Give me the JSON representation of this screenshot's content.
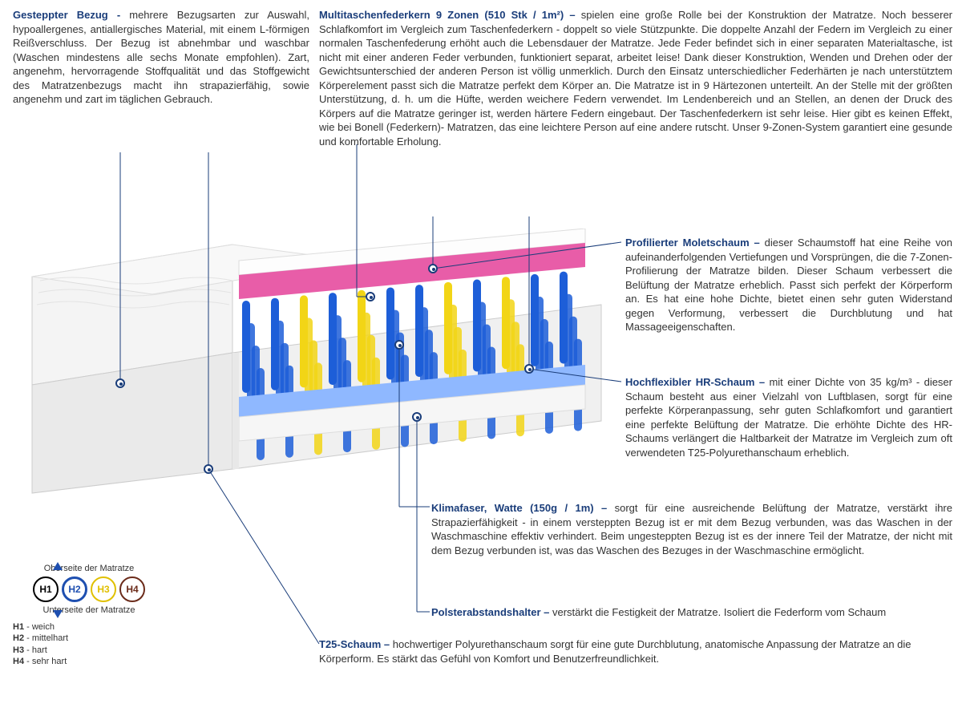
{
  "colors": {
    "title": "#1a3d7a",
    "body": "#333333",
    "h1_ring": "#000000",
    "h2_ring": "#1e4fb0",
    "h3_ring": "#e0c000",
    "h4_ring": "#6b2b1a",
    "foam_pink": "#e85da8",
    "foam_blue_light": "#8fb8ff",
    "spring_blue": "#1d5ed8",
    "spring_yellow": "#f2d516",
    "cover": "#f4f4f4",
    "cover_shadow": "#dcdcdc",
    "base": "#eeeeee"
  },
  "sections": {
    "cover": {
      "title": "Gesteppter Bezug - ",
      "body": "mehrere Bezugsarten zur Auswahl, hypoallergenes, antiallergisches Material, mit einem L-förmigen Reißverschluss. Der Bezug ist abnehmbar und waschbar (Waschen mindestens alle sechs Monate empfohlen). Zart, angenehm, hervorragende Stoffqualität und das Stoffgewicht des Matratzenbezugs macht ihn strapazierfähig, sowie angenehm und zart im täglichen Gebrauch."
    },
    "springs": {
      "title": "Multitaschenfederkern 9 Zonen (510 Stk / 1m²) – ",
      "body": "spielen eine große Rolle bei der Konstruktion der Matratze. Noch besserer Schlafkomfort im Vergleich zum Taschenfederkern - doppelt so viele Stützpunkte. Die doppelte Anzahl der Federn im Vergleich zu einer normalen Taschenfederung erhöht auch die Lebensdauer der Matratze. Jede Feder befindet sich in einer separaten Materialtasche, ist nicht mit einer anderen Feder verbunden, funktioniert separat, arbeitet leise! Dank dieser Konstruktion, Wenden und Drehen oder der Gewichtsunterschied der anderen Person ist völlig unmerklich. Durch den Einsatz unterschiedlicher Federhärten je nach unterstütztem Körperelement passt sich die Matratze perfekt dem Körper an. Die Matratze ist in 9 Härtezonen unterteilt. An der Stelle mit der größten Unterstützung, d. h. um die Hüfte, werden weichere Federn verwendet. Im Lendenbereich und an Stellen, an denen der Druck des Körpers auf die Matratze geringer ist, werden härtere Federn eingebaut. Der Taschenfederkern ist sehr leise. Hier gibt es keinen Effekt, wie bei Bonell (Federkern)- Matratzen, das eine leichtere Person auf eine andere rutscht. Unser 9-Zonen-System garantiert eine gesunde und komfortable Erholung."
    },
    "molet": {
      "title": "Profilierter Moletschaum – ",
      "body": "dieser Schaumstoff hat eine Reihe von aufeinanderfolgenden Vertiefungen und Vorsprüngen, die die 7-Zonen-Profilierung der Matratze bilden. Dieser Schaum verbessert die Belüftung der Matratze erheblich. Passt sich perfekt der Körperform an. Es hat eine hohe Dichte, bietet einen sehr guten Widerstand gegen Verformung, verbessert die Durchblutung und hat Massageeigenschaften."
    },
    "hr": {
      "title": "Hochflexibler HR-Schaum – ",
      "body": "mit einer Dichte von 35 kg/m³ - dieser Schaum besteht aus einer Vielzahl von Luftblasen, sorgt für eine perfekte Körperanpassung, sehr guten Schlafkomfort und garantiert eine perfekte Belüftung der Matratze. Die erhöhte Dichte des HR-Schaums verlängert die Haltbarkeit der Matratze im Vergleich zum oft verwendeten T25-Polyurethanschaum erheblich."
    },
    "klima": {
      "title": "Klimafaser, Watte (150g / 1m) – ",
      "body": "sorgt für eine ausreichende Belüftung der Matratze, verstärkt ihre Strapazierfähigkeit - in einem versteppten Bezug ist er mit dem Bezug verbunden, was das Waschen in der Waschmaschine effektiv verhindert. Beim ungesteppten Bezug ist es der innere Teil der Matratze, der nicht mit dem Bezug verbunden ist, was das Waschen des Bezuges in der Waschmaschine ermöglicht."
    },
    "spacer": {
      "title": "Polsterabstandshalter – ",
      "body": "verstärkt die Festigkeit der Matratze. Isoliert die Federform vom Schaum"
    },
    "t25": {
      "title": "T25-Schaum – ",
      "body": "hochwertiger Polyurethanschaum sorgt für eine gute Durchblutung, anatomische Anpassung der Matratze an die Körperform. Es stärkt das Gefühl von Komfort und Benutzerfreundlichkeit."
    }
  },
  "legend": {
    "top_label": "Oberseite der Matratze",
    "bottom_label": "Unterseite der Matratze",
    "items": [
      {
        "code": "H1",
        "label": "weich",
        "ring": "#000000"
      },
      {
        "code": "H2",
        "label": "mittelhart",
        "ring": "#1e4fb0"
      },
      {
        "code": "H3",
        "label": "hart",
        "ring": "#e0c000"
      },
      {
        "code": "H4",
        "label": "sehr hart",
        "ring": "#6b2b1a"
      }
    ]
  }
}
